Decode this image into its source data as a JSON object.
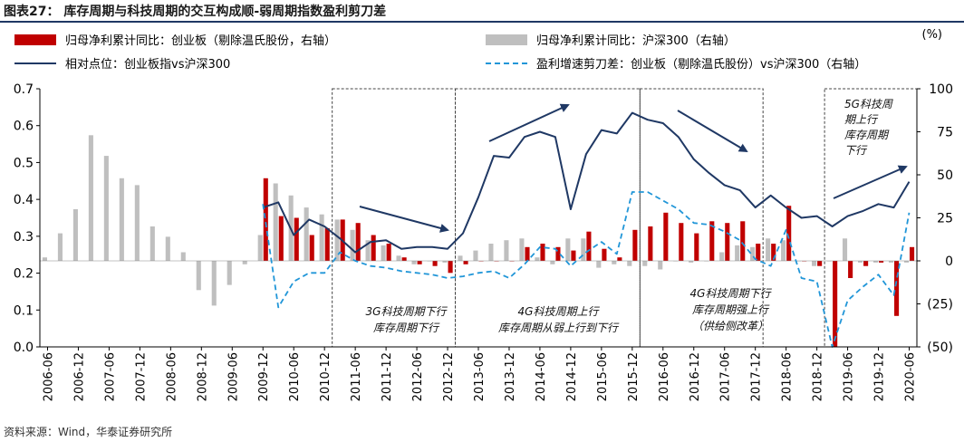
{
  "title": "图表27：  库存周期与科技周期的交互构成顺-弱周期指数盈利剪刀差",
  "source": "资料来源：Wind，华泰证券研究所",
  "unit_right": "(%)",
  "colors": {
    "bar_gem": "#c00000",
    "bar_hs300": "#bfbfbf",
    "line_rel": "#1f3864",
    "line_diff": "#2196d8",
    "arrow": "#1f3864",
    "box": "#444444",
    "axis": "#000000"
  },
  "annotations": [
    {
      "lines": [
        "3G科技周期下行",
        "库存周期下行"
      ]
    },
    {
      "lines": [
        "4G科技周期上行",
        "库存周期从弱上行到下行"
      ]
    },
    {
      "lines": [
        "4G科技周期下行",
        "库存周期强上行",
        "（供给侧改革）"
      ]
    },
    {
      "lines": [
        "5G科技周",
        "期上行",
        "库存周期",
        "下行"
      ]
    }
  ],
  "chart_data": {
    "type": "bar",
    "x": [
      "2006-06",
      "2006-09",
      "2006-12",
      "2007-03",
      "2007-06",
      "2007-09",
      "2007-12",
      "2008-03",
      "2008-06",
      "2008-09",
      "2008-12",
      "2009-03",
      "2009-06",
      "2009-09",
      "2009-12",
      "2010-03",
      "2010-06",
      "2010-09",
      "2010-12",
      "2011-03",
      "2011-06",
      "2011-09",
      "2011-12",
      "2012-03",
      "2012-06",
      "2012-09",
      "2012-12",
      "2013-03",
      "2013-06",
      "2013-09",
      "2013-12",
      "2014-03",
      "2014-06",
      "2014-09",
      "2014-12",
      "2015-03",
      "2015-06",
      "2015-09",
      "2015-12",
      "2016-03",
      "2016-06",
      "2016-09",
      "2016-12",
      "2017-03",
      "2017-06",
      "2017-09",
      "2017-12",
      "2018-03",
      "2018-06",
      "2018-09",
      "2018-12",
      "2019-03",
      "2019-06",
      "2019-09",
      "2019-12",
      "2020-03",
      "2020-06"
    ],
    "x_tick_labels": [
      "2006-06",
      "2006-12",
      "2007-06",
      "2007-12",
      "2008-06",
      "2008-12",
      "2009-06",
      "2009-12",
      "2010-06",
      "2010-12",
      "2011-06",
      "2011-12",
      "2012-06",
      "2012-12",
      "2013-06",
      "2013-12",
      "2014-06",
      "2014-12",
      "2015-06",
      "2015-12",
      "2016-06",
      "2016-12",
      "2017-06",
      "2017-12",
      "2018-06",
      "2018-12",
      "2019-06",
      "2019-12",
      "2020-06"
    ],
    "left_axis": {
      "ylim": [
        0.0,
        0.7
      ],
      "ticks": [
        "0.0",
        "0.1",
        "0.2",
        "0.3",
        "0.4",
        "0.5",
        "0.6",
        "0.7"
      ]
    },
    "right_axis": {
      "ylim": [
        -50,
        100
      ],
      "ticks": [
        "(50)",
        "(25)",
        "0",
        "25",
        "50",
        "75",
        "100"
      ]
    },
    "series": [
      {
        "name": "归母净利累计同比：创业板（剔除温氏股份，右轴）",
        "type": "bar",
        "axis": "right",
        "values": [
          null,
          null,
          null,
          null,
          null,
          null,
          null,
          null,
          null,
          null,
          null,
          null,
          null,
          null,
          48,
          26,
          25,
          15,
          19,
          24,
          22,
          15,
          10,
          2,
          -2,
          -3,
          -7,
          -2,
          0,
          0,
          0,
          8,
          10,
          8,
          6,
          17,
          7,
          2,
          18,
          20,
          28,
          22,
          16,
          23,
          22,
          23,
          10,
          10,
          32,
          0,
          -3,
          -50,
          -10,
          -3,
          -1,
          -32,
          8
        ]
      },
      {
        "name": "归母净利累计同比：沪深300（右轴）",
        "type": "bar",
        "axis": "right",
        "values": [
          2,
          16,
          30,
          73,
          61,
          48,
          44,
          20,
          14,
          5,
          -17,
          -26,
          -14,
          -2,
          15,
          45,
          38,
          31,
          27,
          24,
          18,
          12,
          9,
          3,
          -2,
          0,
          -1,
          3,
          6,
          10,
          12,
          13,
          2,
          -2,
          13,
          13,
          -4,
          -2,
          -3,
          -3,
          -5,
          0,
          -1,
          0,
          5,
          9,
          8,
          13,
          12,
          0,
          -3,
          0,
          13,
          -1,
          -1,
          -1,
          -1
        ]
      },
      {
        "name": "相对点位：创业板指vs沪深300",
        "type": "line",
        "axis": "right",
        "values": [
          null,
          null,
          null,
          null,
          null,
          null,
          null,
          null,
          null,
          null,
          null,
          null,
          null,
          null,
          31,
          34,
          15,
          24,
          20,
          13,
          5,
          11,
          12,
          7,
          8,
          8,
          7,
          16,
          37,
          61,
          60,
          72,
          75,
          72,
          30,
          62,
          76,
          74,
          86,
          82,
          80,
          72,
          59,
          51,
          44,
          41,
          31,
          38,
          31,
          25,
          26,
          20,
          26,
          29,
          33,
          31,
          46
        ]
      },
      {
        "name": "盈利增速剪刀差：创业板（剔除温氏股份）vs沪深300（右轴）",
        "type": "line",
        "axis": "right",
        "values": [
          null,
          null,
          null,
          null,
          null,
          null,
          null,
          null,
          null,
          null,
          null,
          null,
          null,
          null,
          33,
          -27,
          -12,
          -7,
          -7,
          5,
          0,
          -3,
          -4,
          -6,
          -7,
          -8,
          -10,
          -9,
          -7,
          -6,
          -10,
          -2,
          8,
          7,
          -3,
          5,
          11,
          4,
          40,
          40,
          35,
          30,
          22,
          21,
          17,
          12,
          1,
          -3,
          18,
          -10,
          -12,
          -50,
          -23,
          -15,
          -8,
          -20,
          28
        ]
      }
    ],
    "boxes": [
      [
        "2011-03",
        "2012-12"
      ],
      [
        "2013-03",
        "2015-12"
      ],
      [
        "2016-03",
        "2017-12"
      ],
      [
        "2019-03",
        "2020-06"
      ]
    ],
    "legend_position": "top"
  }
}
